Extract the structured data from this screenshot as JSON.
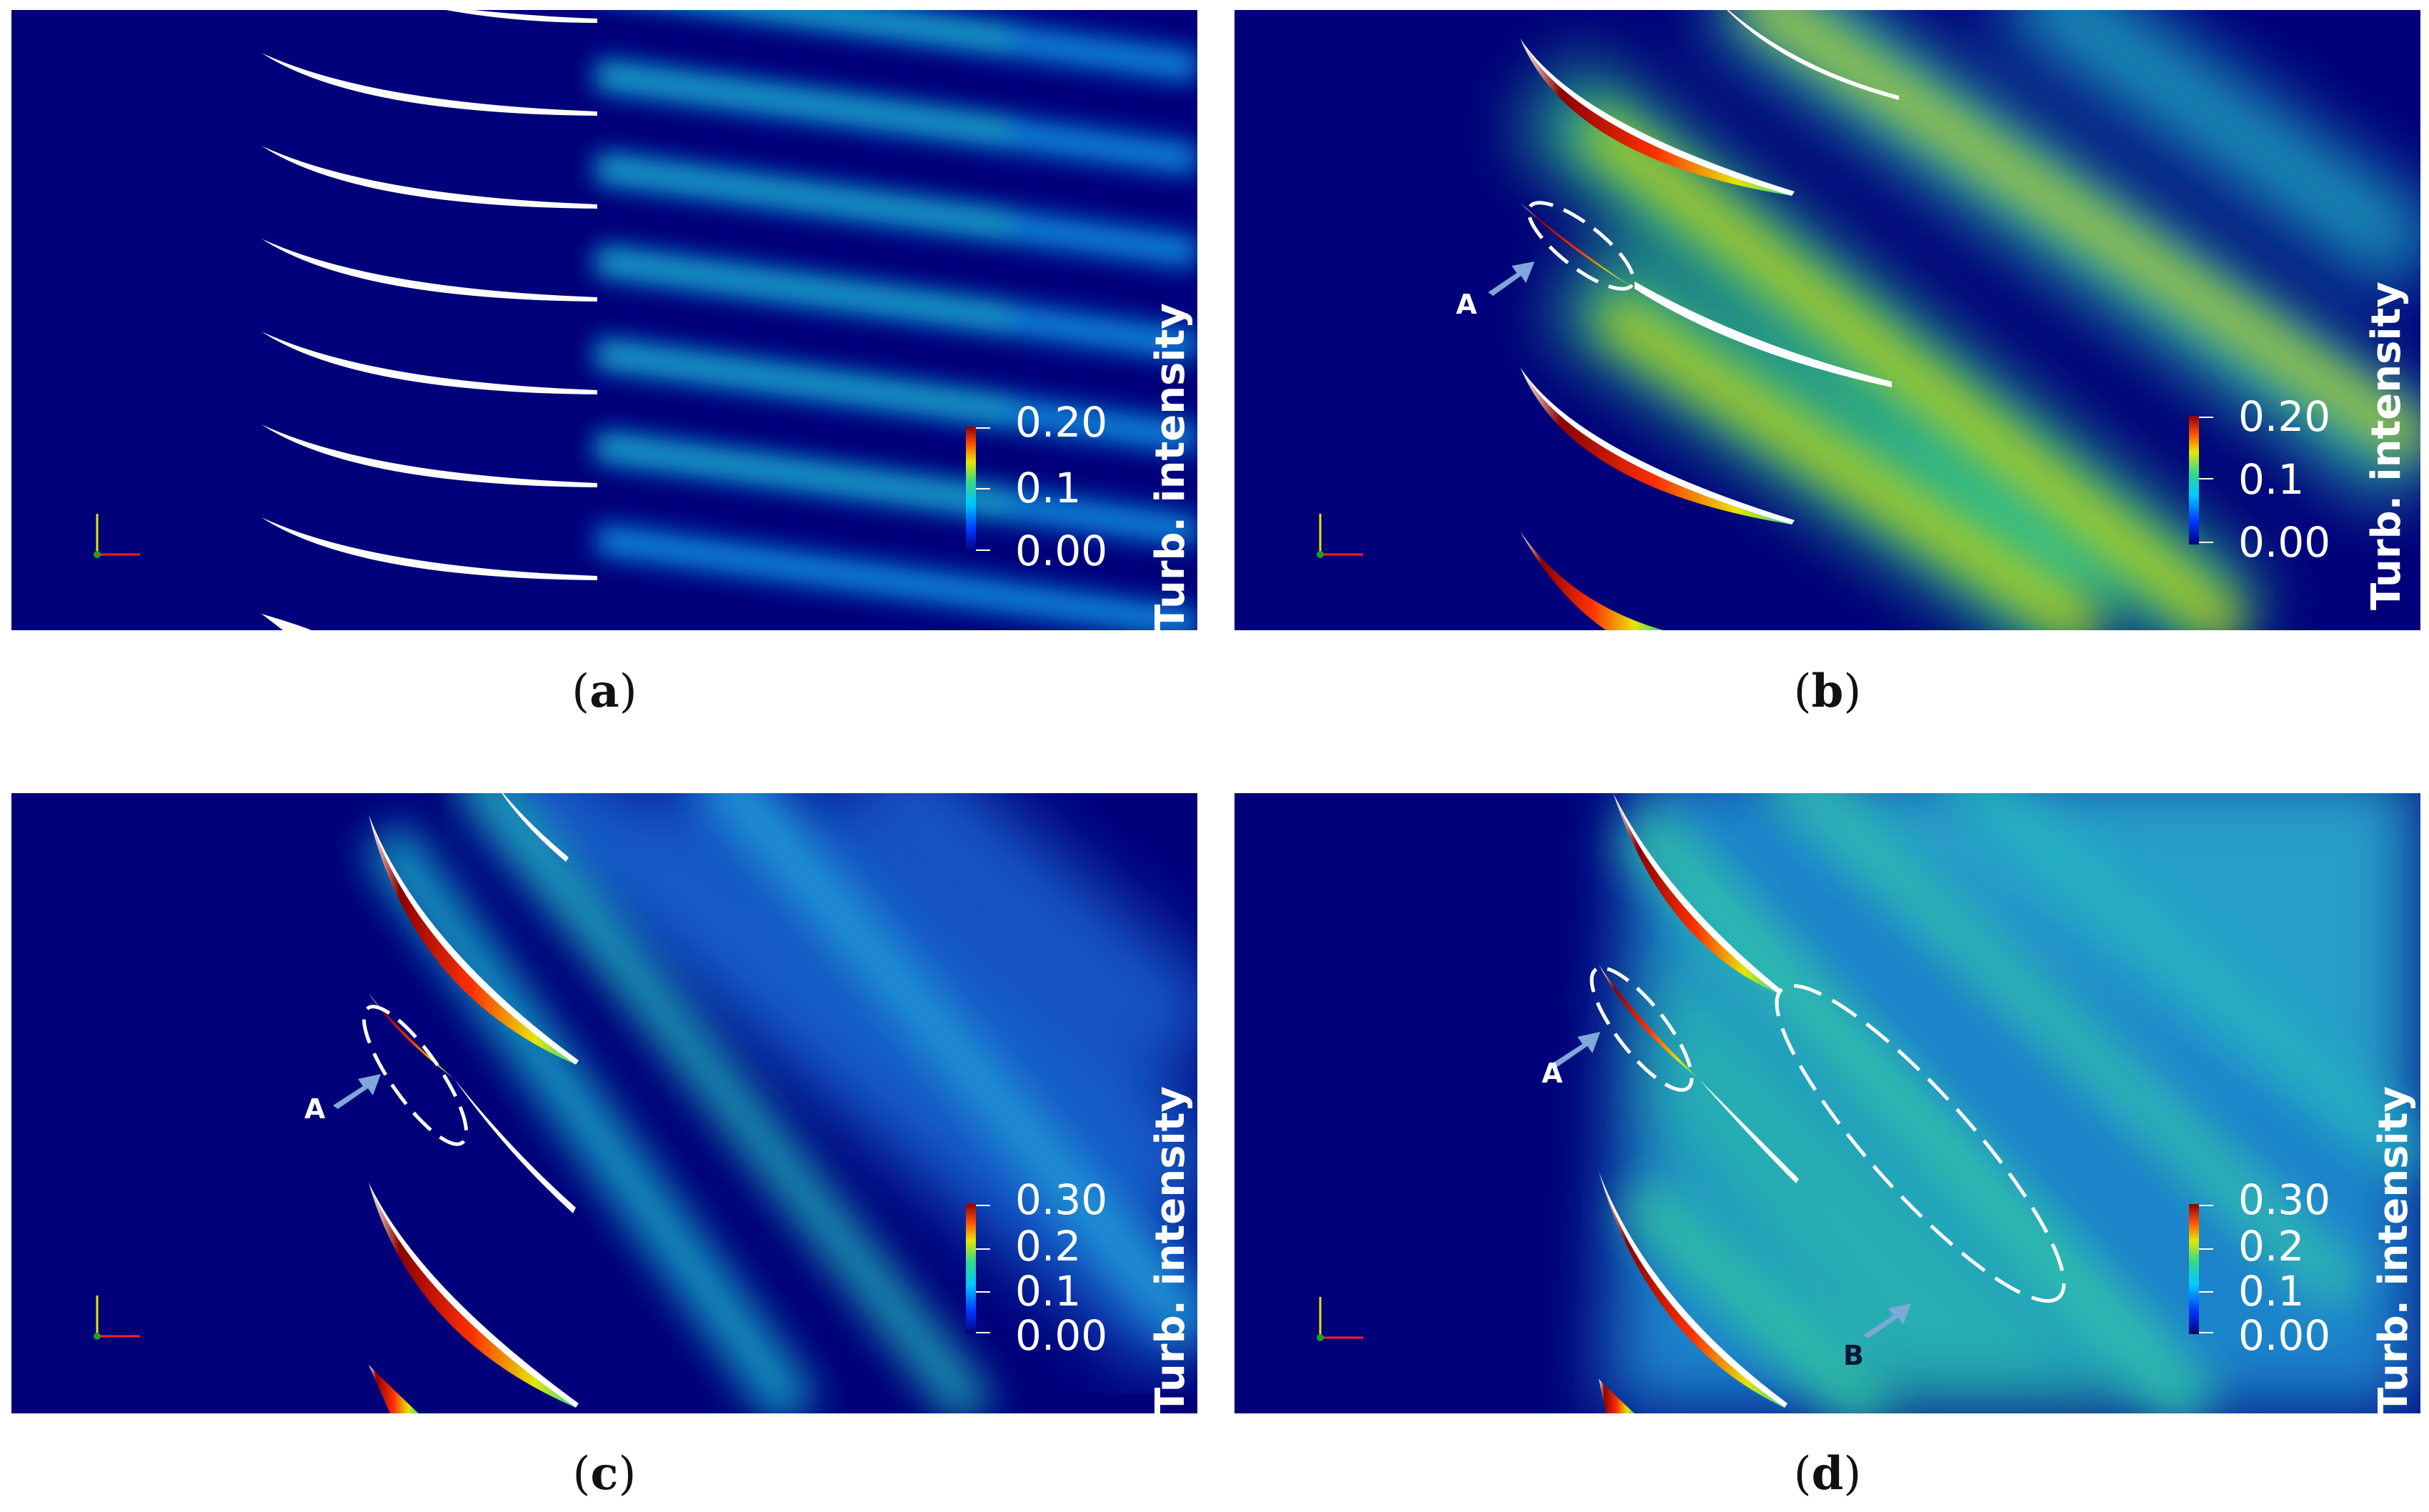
{
  "panels": [
    {
      "caption": "a",
      "colorbar": {
        "title": "Turb. intensity",
        "ticks": [
          "0.20",
          "0.1",
          "0.00"
        ]
      },
      "annotations": []
    },
    {
      "caption": "b",
      "colorbar": {
        "title": "Turb. intensity",
        "ticks": [
          "0.20",
          "0.1",
          "0.00"
        ]
      },
      "annotations": [
        "A"
      ]
    },
    {
      "caption": "c",
      "colorbar": {
        "title": "Turb. intensity",
        "ticks": [
          "0.30",
          "0.2",
          "0.1",
          "0.00"
        ]
      },
      "annotations": [
        "A"
      ]
    },
    {
      "caption": "d",
      "colorbar": {
        "title": "Turb. intensity",
        "ticks": [
          "0.30",
          "0.2",
          "0.1",
          "0.00"
        ]
      },
      "annotations": [
        "A",
        "B"
      ]
    }
  ],
  "colors": {
    "background": "#00007a",
    "colormap": [
      "#00007a",
      "#0038ff",
      "#00c8ff",
      "#30d890",
      "#e6e600",
      "#ff5000",
      "#8b0000"
    ]
  }
}
